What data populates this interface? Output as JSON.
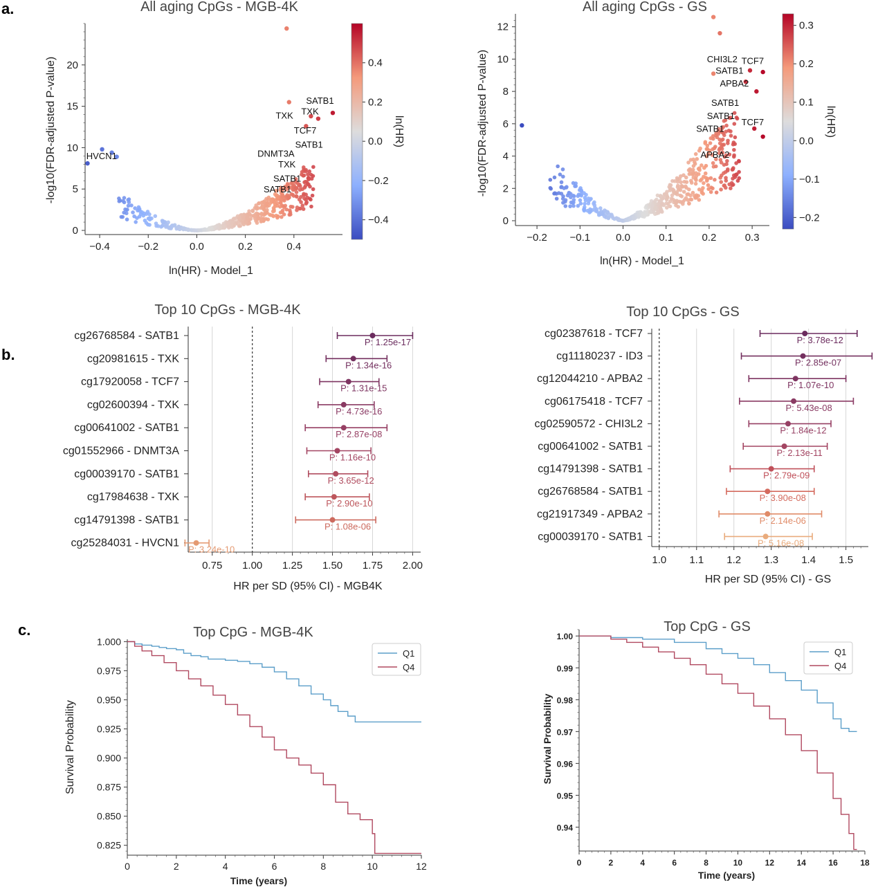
{
  "panel_labels": [
    "a.",
    "b.",
    "c."
  ],
  "colorbar_label": "ln(HR)",
  "chart_data": [
    {
      "id": "volcano-mgb",
      "type": "scatter",
      "title": "All aging CpGs - MGB-4K",
      "xlabel": "ln(HR) - Model_1",
      "ylabel": "-log10(FDR-adjusted P-value)",
      "xlim": [
        -0.46,
        0.6
      ],
      "ylim": [
        -0.5,
        25
      ],
      "xticks": [
        -0.4,
        -0.2,
        0.0,
        0.2,
        0.4
      ],
      "xtick_labels": [
        "−0.4",
        "−0.2",
        "0.0",
        "0.2",
        "0.4"
      ],
      "yticks": [
        0,
        5,
        10,
        15,
        20
      ],
      "colorbar": {
        "min": -0.5,
        "max": 0.6,
        "ticks": [
          -0.4,
          -0.2,
          0.0,
          0.2,
          0.4
        ],
        "tick_labels": [
          "−0.4",
          "−0.2",
          "0.0",
          "0.2",
          "0.4"
        ]
      },
      "annotations": [
        {
          "text": "HVCN1",
          "x": -0.455,
          "y": 8.6
        },
        {
          "text": "SATB1",
          "x": 0.45,
          "y": 15.3
        },
        {
          "text": "TXK",
          "x": 0.43,
          "y": 14.0
        },
        {
          "text": "TXK",
          "x": 0.325,
          "y": 13.5
        },
        {
          "text": "TCF7",
          "x": 0.4,
          "y": 11.7
        },
        {
          "text": "SATB1",
          "x": 0.405,
          "y": 10.0
        },
        {
          "text": "DNMT3A",
          "x": 0.25,
          "y": 8.9
        },
        {
          "text": "TXK",
          "x": 0.335,
          "y": 7.6
        },
        {
          "text": "SATB1",
          "x": 0.315,
          "y": 5.9
        },
        {
          "text": "SATB1",
          "x": 0.275,
          "y": 4.6
        }
      ],
      "highlight_points": [
        {
          "x": -0.45,
          "y": 8.1
        },
        {
          "x": -0.39,
          "y": 9.8
        },
        {
          "x": -0.35,
          "y": 9.4
        },
        {
          "x": -0.33,
          "y": 8.9
        },
        {
          "x": 0.37,
          "y": 24.4
        },
        {
          "x": 0.56,
          "y": 14.2
        },
        {
          "x": 0.38,
          "y": 15.5
        },
        {
          "x": 0.47,
          "y": 13.8
        },
        {
          "x": 0.5,
          "y": 13.5
        },
        {
          "x": 0.45,
          "y": 12.6
        },
        {
          "x": 0.46,
          "y": 6.3
        },
        {
          "x": 0.41,
          "y": 5.1
        }
      ]
    },
    {
      "id": "volcano-gs",
      "type": "scatter",
      "title": "All aging CpGs - GS",
      "xlabel": "ln(HR) - Model_1",
      "ylabel": "-log10(FDR-adjusted P-value)",
      "xlim": [
        -0.25,
        0.34
      ],
      "ylim": [
        -0.3,
        12.8
      ],
      "xticks": [
        -0.2,
        -0.1,
        0.0,
        0.1,
        0.2,
        0.3
      ],
      "xtick_labels": [
        "−0.2",
        "−0.1",
        "0.0",
        "0.1",
        "0.2",
        "0.3"
      ],
      "yticks": [
        0,
        2,
        4,
        6,
        8,
        10,
        12
      ],
      "colorbar": {
        "min": -0.23,
        "max": 0.33,
        "ticks": [
          -0.2,
          -0.1,
          0.0,
          0.1,
          0.2,
          0.3
        ],
        "tick_labels": [
          "−0.2",
          "−0.1",
          "0.0",
          "0.1",
          "0.2",
          "0.3"
        ]
      },
      "annotations": [
        {
          "text": "CHI3L2",
          "x": 0.195,
          "y": 9.8
        },
        {
          "text": "TCF7",
          "x": 0.275,
          "y": 9.7
        },
        {
          "text": "SATB1",
          "x": 0.215,
          "y": 9.1
        },
        {
          "text": "APBA2",
          "x": 0.225,
          "y": 8.3
        },
        {
          "text": "SATB1",
          "x": 0.205,
          "y": 7.1
        },
        {
          "text": "TCF7",
          "x": 0.275,
          "y": 5.9
        },
        {
          "text": "SATB1",
          "x": 0.195,
          "y": 6.3
        },
        {
          "text": "SATB1",
          "x": 0.17,
          "y": 5.5
        },
        {
          "text": "APBA2",
          "x": 0.18,
          "y": 3.9
        }
      ],
      "highlight_points": [
        {
          "x": -0.235,
          "y": 5.9
        },
        {
          "x": 0.21,
          "y": 12.6
        },
        {
          "x": 0.225,
          "y": 11.6
        },
        {
          "x": 0.325,
          "y": 9.2
        },
        {
          "x": 0.295,
          "y": 9.3
        },
        {
          "x": 0.31,
          "y": 8.0
        },
        {
          "x": 0.285,
          "y": 8.6
        },
        {
          "x": 0.305,
          "y": 5.7
        },
        {
          "x": 0.325,
          "y": 5.2
        },
        {
          "x": 0.21,
          "y": 9.1
        }
      ]
    },
    {
      "id": "forest-mgb",
      "type": "forest",
      "title": "Top 10 CpGs - MGB-4K",
      "xlabel": "HR per SD (95% CI) - MGB4K",
      "xlim": [
        0.6,
        2.05
      ],
      "xticks": [
        0.75,
        1.0,
        1.25,
        1.5,
        1.75,
        2.0
      ],
      "xtick_labels": [
        "0.75",
        "1.00",
        "1.25",
        "1.50",
        "1.75",
        "2.00"
      ],
      "reference_line": 1.0,
      "rows": [
        {
          "label": "cg26768584 - SATB1",
          "hr": 1.75,
          "lo": 1.53,
          "hi": 2.0,
          "p": "P: 1.25e-17",
          "color": "#6b2c5e"
        },
        {
          "label": "cg20981615 - TXK",
          "hr": 1.63,
          "lo": 1.46,
          "hi": 1.84,
          "p": "P: 1.34e-16",
          "color": "#74305f"
        },
        {
          "label": "cg17920058 - TCF7",
          "hr": 1.6,
          "lo": 1.42,
          "hi": 1.79,
          "p": "P: 1.31e-15",
          "color": "#7e3461"
        },
        {
          "label": "cg02600394 - TXK",
          "hr": 1.57,
          "lo": 1.41,
          "hi": 1.76,
          "p": "P: 4.73e-16",
          "color": "#8a3a63"
        },
        {
          "label": "cg00641002 - SATB1",
          "hr": 1.57,
          "lo": 1.33,
          "hi": 1.84,
          "p": "P: 2.87e-08",
          "color": "#963f63"
        },
        {
          "label": "cg01552966 - DNMT3A",
          "hr": 1.53,
          "lo": 1.34,
          "hi": 1.74,
          "p": "P: 1.16e-10",
          "color": "#a34562"
        },
        {
          "label": "cg00039170 - SATB1",
          "hr": 1.52,
          "lo": 1.35,
          "hi": 1.72,
          "p": "P: 3.65e-12",
          "color": "#b04c5f"
        },
        {
          "label": "cg17984638 - TXK",
          "hr": 1.51,
          "lo": 1.33,
          "hi": 1.73,
          "p": "P: 2.90e-10",
          "color": "#bd565c"
        },
        {
          "label": "cg14791398 - SATB1",
          "hr": 1.5,
          "lo": 1.27,
          "hi": 1.77,
          "p": "P: 1.08e-06",
          "color": "#cc6a5e"
        },
        {
          "label": "cg25284031 - HVCN1",
          "hr": 0.65,
          "lo": 0.58,
          "hi": 0.73,
          "p": "P: 3.24e-10",
          "color": "#e49a72"
        }
      ]
    },
    {
      "id": "forest-gs",
      "type": "forest",
      "title": "Top 10 CpGs - GS",
      "xlabel": "HR per SD (95% CI) - GS",
      "xlim": [
        0.98,
        1.56
      ],
      "xticks": [
        1.0,
        1.1,
        1.2,
        1.3,
        1.4,
        1.5
      ],
      "xtick_labels": [
        "1.0",
        "1.1",
        "1.2",
        "1.3",
        "1.4",
        "1.5"
      ],
      "reference_line": 1.0,
      "rows": [
        {
          "label": "cg02387618 - TCF7",
          "hr": 1.39,
          "lo": 1.27,
          "hi": 1.53,
          "p": "P: 3.78e-12",
          "color": "#6b2c5e"
        },
        {
          "label": "cg11180237 - ID3",
          "hr": 1.385,
          "lo": 1.22,
          "hi": 1.57,
          "p": "P: 2.85e-07",
          "color": "#74305f"
        },
        {
          "label": "cg12044210 - APBA2",
          "hr": 1.365,
          "lo": 1.24,
          "hi": 1.5,
          "p": "P: 1.07e-10",
          "color": "#7e3461"
        },
        {
          "label": "cg06175418 - TCF7",
          "hr": 1.36,
          "lo": 1.215,
          "hi": 1.52,
          "p": "P: 5.43e-08",
          "color": "#8a3a63"
        },
        {
          "label": "cg02590572 - CHI3L2",
          "hr": 1.345,
          "lo": 1.24,
          "hi": 1.46,
          "p": "P: 1.84e-12",
          "color": "#963f63"
        },
        {
          "label": "cg00641002 - SATB1",
          "hr": 1.335,
          "lo": 1.225,
          "hi": 1.45,
          "p": "P: 2.13e-11",
          "color": "#a34562"
        },
        {
          "label": "cg14791398 - SATB1",
          "hr": 1.3,
          "lo": 1.19,
          "hi": 1.415,
          "p": "P: 2.79e-09",
          "color": "#c0505a"
        },
        {
          "label": "cg26768584 - SATB1",
          "hr": 1.29,
          "lo": 1.18,
          "hi": 1.415,
          "p": "P: 3.90e-08",
          "color": "#d46a5e"
        },
        {
          "label": "cg21917349 - APBA2",
          "hr": 1.29,
          "lo": 1.16,
          "hi": 1.435,
          "p": "P: 2.14e-06",
          "color": "#e08b68"
        },
        {
          "label": "cg00039170 - SATB1",
          "hr": 1.285,
          "lo": 1.175,
          "hi": 1.41,
          "p": "P: 5.16e-08",
          "color": "#e9ab7c"
        }
      ]
    },
    {
      "id": "km-mgb",
      "type": "line",
      "title": "Top CpG - MGB-4K",
      "xlabel": "Time (years)",
      "ylabel": "Survival Probability",
      "xlim": [
        0,
        12
      ],
      "ylim": [
        0.8165,
        1.002
      ],
      "xticks": [
        0,
        2,
        4,
        6,
        8,
        10,
        12
      ],
      "yticks": [
        0.825,
        0.85,
        0.875,
        0.9,
        0.925,
        0.95,
        0.975,
        1.0
      ],
      "ytick_labels": [
        "0.825",
        "0.850",
        "0.875",
        "0.900",
        "0.925",
        "0.950",
        "0.975",
        "1.000"
      ],
      "legend_position": "top-right",
      "series": [
        {
          "name": "Q1",
          "color": "#5b9ec9",
          "x": [
            0,
            0.3,
            0.6,
            1,
            1.3,
            1.6,
            2,
            2.3,
            2.6,
            3,
            3.3,
            3.6,
            4,
            4.5,
            5,
            5.5,
            6,
            6.5,
            7,
            7.5,
            8,
            8.3,
            8.6,
            9,
            9.3,
            12
          ],
          "y": [
            1.0,
            0.998,
            0.997,
            0.996,
            0.995,
            0.994,
            0.993,
            0.99,
            0.988,
            0.987,
            0.985,
            0.985,
            0.984,
            0.983,
            0.981,
            0.978,
            0.974,
            0.968,
            0.962,
            0.955,
            0.95,
            0.945,
            0.94,
            0.936,
            0.931,
            0.931
          ]
        },
        {
          "name": "Q4",
          "color": "#b0485f",
          "x": [
            0,
            0.3,
            0.6,
            1,
            1.5,
            2,
            2.5,
            3,
            3.5,
            4,
            4.5,
            5,
            5.5,
            6,
            6.5,
            7,
            7.5,
            8,
            8.5,
            9,
            9.5,
            9.9,
            10,
            10.1,
            12
          ],
          "y": [
            1.0,
            0.996,
            0.992,
            0.988,
            0.982,
            0.975,
            0.968,
            0.962,
            0.954,
            0.946,
            0.937,
            0.927,
            0.918,
            0.907,
            0.9,
            0.894,
            0.887,
            0.877,
            0.862,
            0.852,
            0.847,
            0.847,
            0.835,
            0.818,
            0.818
          ]
        }
      ]
    },
    {
      "id": "km-gs",
      "type": "line",
      "title": "Top CpG - GS",
      "xlabel": "Time (years)",
      "ylabel": "Survival Probability",
      "xlim": [
        0,
        18
      ],
      "ylim": [
        0.9325,
        1.002
      ],
      "xticks": [
        0,
        2,
        4,
        6,
        8,
        10,
        12,
        14,
        16,
        18
      ],
      "yticks": [
        0.94,
        0.95,
        0.96,
        0.97,
        0.98,
        0.99,
        1.0
      ],
      "ytick_labels": [
        "0.94",
        "0.95",
        "0.96",
        "0.97",
        "0.98",
        "0.99",
        "1.00"
      ],
      "legend_position": "top-right",
      "series": [
        {
          "name": "Q1",
          "color": "#5b9ec9",
          "x": [
            0,
            2,
            4,
            6,
            8,
            9,
            10,
            11,
            12,
            13,
            14,
            15,
            16,
            16.5,
            17,
            17.5
          ],
          "y": [
            1.0,
            0.9995,
            0.999,
            0.998,
            0.996,
            0.9945,
            0.993,
            0.991,
            0.9885,
            0.986,
            0.983,
            0.979,
            0.974,
            0.971,
            0.97,
            0.97
          ]
        },
        {
          "name": "Q4",
          "color": "#b0485f",
          "x": [
            0,
            2,
            3,
            4,
            5,
            6,
            7,
            8,
            9,
            10,
            11,
            12,
            13,
            14,
            15,
            16,
            16.5,
            17,
            17.3,
            17.5
          ],
          "y": [
            1.0,
            0.999,
            0.998,
            0.9965,
            0.995,
            0.993,
            0.991,
            0.988,
            0.985,
            0.982,
            0.978,
            0.974,
            0.969,
            0.964,
            0.957,
            0.949,
            0.944,
            0.938,
            0.933,
            0.933
          ]
        }
      ]
    }
  ]
}
